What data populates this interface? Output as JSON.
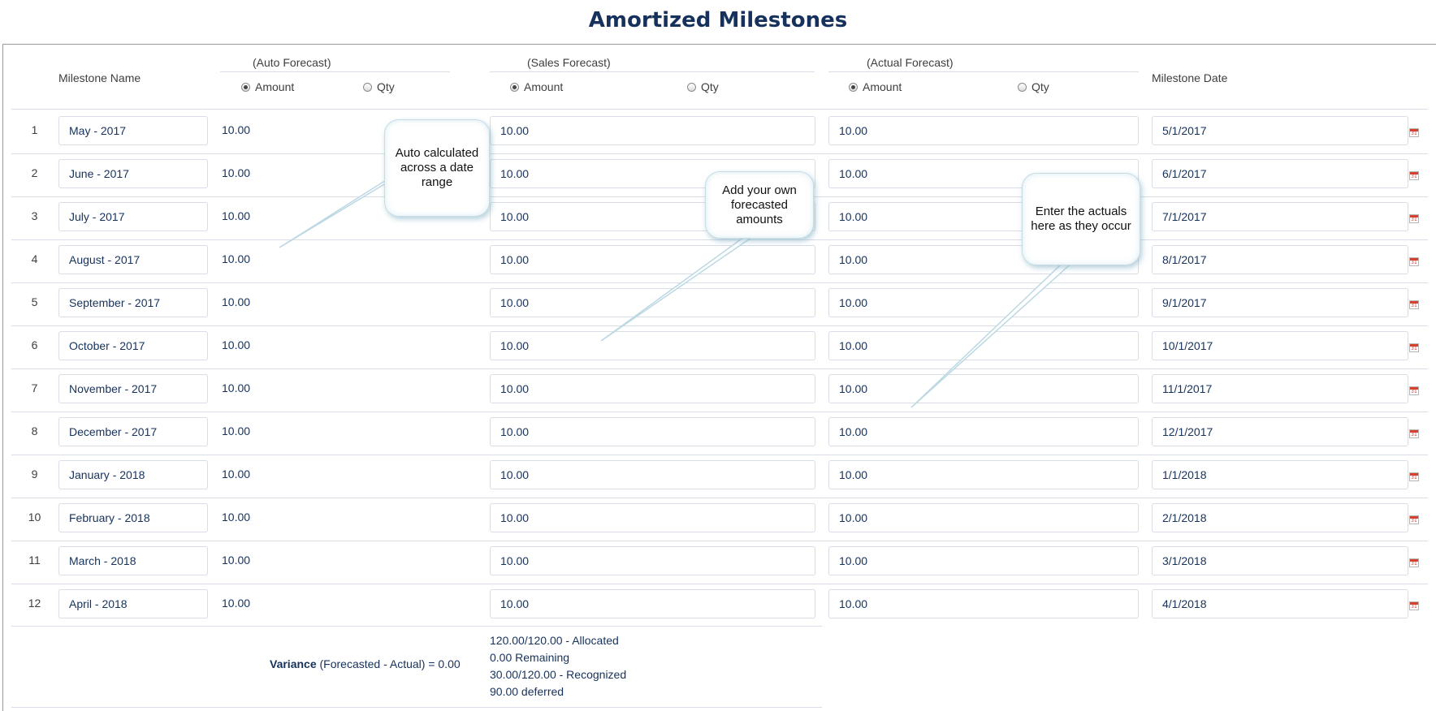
{
  "title": "Amortized Milestones",
  "header": {
    "milestone_name": "Milestone Name",
    "milestone_date": "Milestone Date",
    "groups": [
      {
        "label": "(Auto Forecast)",
        "options": [
          {
            "label": "Amount",
            "checked": true
          },
          {
            "label": "Qty",
            "checked": false
          }
        ]
      },
      {
        "label": "(Sales Forecast)",
        "options": [
          {
            "label": "Amount",
            "checked": true
          },
          {
            "label": "Qty",
            "checked": false
          }
        ]
      },
      {
        "label": "(Actual Forecast)",
        "options": [
          {
            "label": "Amount",
            "checked": true
          },
          {
            "label": "Qty",
            "checked": false
          }
        ]
      }
    ]
  },
  "rows": [
    {
      "num": "1",
      "name": "May - 2017",
      "auto": "10.00",
      "sales": "10.00",
      "actual": "10.00",
      "date": "5/1/2017"
    },
    {
      "num": "2",
      "name": "June - 2017",
      "auto": "10.00",
      "sales": "10.00",
      "actual": "10.00",
      "date": "6/1/2017"
    },
    {
      "num": "3",
      "name": "July - 2017",
      "auto": "10.00",
      "sales": "10.00",
      "actual": "10.00",
      "date": "7/1/2017"
    },
    {
      "num": "4",
      "name": "August - 2017",
      "auto": "10.00",
      "sales": "10.00",
      "actual": "10.00",
      "date": "8/1/2017"
    },
    {
      "num": "5",
      "name": "September - 2017",
      "auto": "10.00",
      "sales": "10.00",
      "actual": "10.00",
      "date": "9/1/2017"
    },
    {
      "num": "6",
      "name": "October - 2017",
      "auto": "10.00",
      "sales": "10.00",
      "actual": "10.00",
      "date": "10/1/2017"
    },
    {
      "num": "7",
      "name": "November - 2017",
      "auto": "10.00",
      "sales": "10.00",
      "actual": "10.00",
      "date": "11/1/2017"
    },
    {
      "num": "8",
      "name": "December - 2017",
      "auto": "10.00",
      "sales": "10.00",
      "actual": "10.00",
      "date": "12/1/2017"
    },
    {
      "num": "9",
      "name": "January - 2018",
      "auto": "10.00",
      "sales": "10.00",
      "actual": "10.00",
      "date": "1/1/2018"
    },
    {
      "num": "10",
      "name": "February - 2018",
      "auto": "10.00",
      "sales": "10.00",
      "actual": "10.00",
      "date": "2/1/2018"
    },
    {
      "num": "11",
      "name": "March - 2018",
      "auto": "10.00",
      "sales": "10.00",
      "actual": "10.00",
      "date": "3/1/2018"
    },
    {
      "num": "12",
      "name": "April - 2018",
      "auto": "10.00",
      "sales": "10.00",
      "actual": "10.00",
      "date": "4/1/2018"
    }
  ],
  "calendar_icon_label": "31",
  "footer": {
    "variance_label": "Variance",
    "variance_detail": "(Forecasted - Actual) = 0.00",
    "summary": [
      "120.00/120.00 - Allocated",
      "0.00 Remaining",
      "30.00/120.00 - Recognized",
      "90.00 deferred"
    ]
  },
  "callouts": [
    {
      "text": "Auto calculated across a date range"
    },
    {
      "text": "Add your own forecasted amounts"
    },
    {
      "text": "Enter the actuals here as they occur"
    }
  ],
  "colors": {
    "title": "#16325c",
    "text": "#16325c",
    "border": "#d8dde6",
    "calendar": "#d9412f"
  }
}
